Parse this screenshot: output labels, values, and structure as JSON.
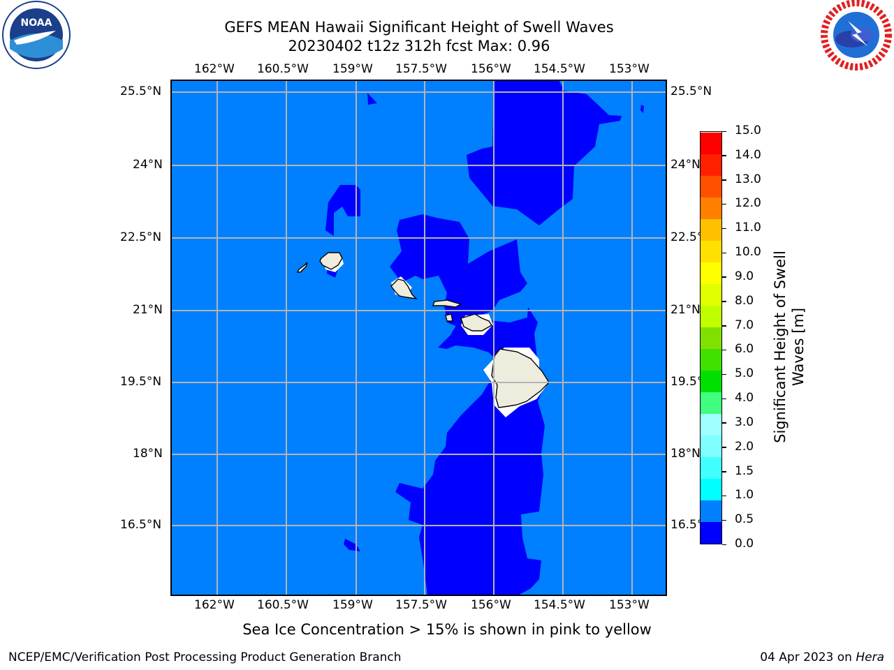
{
  "header": {
    "title_line1": "GEFS MEAN Hawaii Significant Height of Swell Waves",
    "title_line2": "20230402 t12z 312h fcst   Max: 0.96"
  },
  "logos": {
    "left": "NOAA",
    "right": "NATIONAL WEATHER SERVICE",
    "left_ring_text": "NATIONAL OCEANIC AND ATMOSPHERIC ADMINISTRATION · U.S. DEPARTMENT OF COMMERCE"
  },
  "map": {
    "lon_labels": [
      "162°W",
      "160.5°W",
      "159°W",
      "157.5°W",
      "156°W",
      "154.5°W",
      "153°W"
    ],
    "lat_labels": [
      "25.5°N",
      "24°N",
      "22.5°N",
      "21°N",
      "19.5°N",
      "18°N",
      "16.5°N"
    ],
    "colors": {
      "ocean_light": "#0080ff",
      "ocean_dark": "#0000ff",
      "land": "#eeecdc"
    }
  },
  "colorbar": {
    "label_line1": "Significant Height of Swell",
    "label_line2": "Waves [m]",
    "ticks": [
      "0.0",
      "0.5",
      "1.0",
      "1.5",
      "2.0",
      "3.0",
      "4.0",
      "5.0",
      "6.0",
      "7.0",
      "8.0",
      "9.0",
      "10.0",
      "11.0",
      "12.0",
      "13.0",
      "14.0",
      "15.0"
    ],
    "colors": [
      "#0000ff",
      "#0080ff",
      "#00ffff",
      "#40ffff",
      "#80ffff",
      "#a0ffff",
      "#40ff80",
      "#00e000",
      "#40e000",
      "#80e000",
      "#c0ff00",
      "#e0ff00",
      "#ffff00",
      "#ffe000",
      "#ffc000",
      "#ff8000",
      "#ff5000",
      "#ff2000",
      "#ff0000"
    ]
  },
  "caption": "Sea Ice Concentration > 15% is shown in pink to yellow",
  "footer": {
    "left": "NCEP/EMC/Verification Post Processing Product Generation Branch",
    "right_prefix": "04 Apr 2023 on ",
    "right_host": "Hera"
  }
}
